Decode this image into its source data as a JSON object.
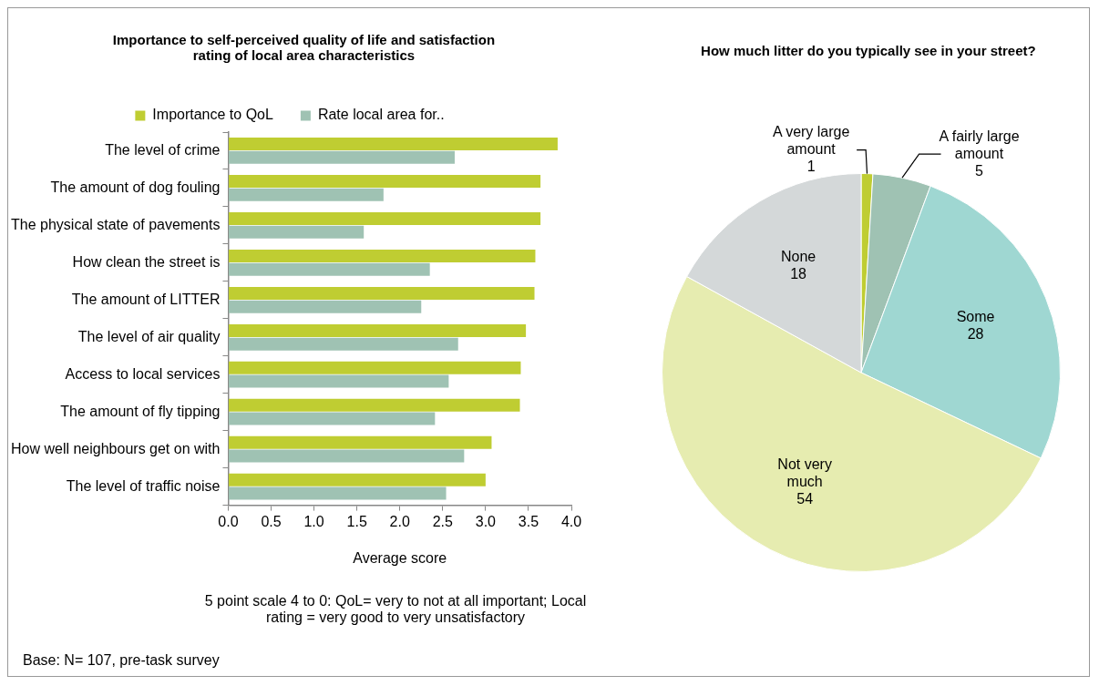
{
  "chart_data": [
    {
      "type": "bar",
      "orientation": "horizontal",
      "title": "Importance to self-perceived quality of life and satisfaction rating of local area characteristics",
      "xlabel": "Average score",
      "categories": [
        "The level of crime",
        "The amount of dog fouling",
        "The physical state of pavements",
        "How clean the street is",
        "The amount of LITTER",
        "The level of air quality",
        "Access to local services",
        "The amount of fly tipping",
        "How well neighbours get on with",
        "The level of traffic noise"
      ],
      "series": [
        {
          "name": "Importance to QoL",
          "color": "#bfcd32",
          "values": [
            3.84,
            3.64,
            3.64,
            3.58,
            3.57,
            3.47,
            3.41,
            3.4,
            3.07,
            3.0
          ]
        },
        {
          "name": "Rate local area for..",
          "color": "#9fc2b3",
          "values": [
            2.64,
            1.81,
            1.58,
            2.35,
            2.25,
            2.68,
            2.57,
            2.41,
            2.75,
            2.54
          ]
        }
      ],
      "xlim": [
        0,
        4
      ],
      "xticks": [
        {
          "value": 0,
          "label": "0.0"
        },
        {
          "value": 0.5,
          "label": "0.5"
        },
        {
          "value": 1,
          "label": "1.0"
        },
        {
          "value": 1.5,
          "label": "1.5"
        },
        {
          "value": 2,
          "label": "2.0"
        },
        {
          "value": 2.5,
          "label": "2.5"
        },
        {
          "value": 3,
          "label": "3.0"
        },
        {
          "value": 3.5,
          "label": "3.5"
        },
        {
          "value": 4,
          "label": "4.0"
        }
      ],
      "grid": false,
      "legend": "top",
      "annotations": [
        "5 point scale 4 to 0: QoL= very to not at all important; Local rating = very good to very unsatisfactory",
        "Base: N= 107, pre-task survey"
      ]
    },
    {
      "type": "pie",
      "title": "How much litter do you typically see in your street?",
      "categories": [
        "A very large amount",
        "A fairly large amount",
        "Some",
        "Not very much",
        "None"
      ],
      "values": [
        1,
        5,
        28,
        54,
        18
      ],
      "colors": [
        "#bfcd32",
        "#9fc2b3",
        "#9fd7d2",
        "#e6ecb0",
        "#d4d8d9"
      ],
      "data_labels": true,
      "legend": false
    }
  ]
}
